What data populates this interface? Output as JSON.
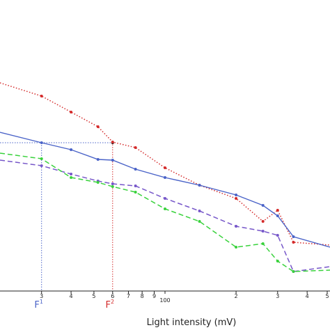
{
  "chart_data": {
    "type": "line",
    "xlabel": "Light intensity (mV)",
    "x_scale": "log",
    "x_ticks": [
      "3",
      "4",
      "5",
      "6",
      "7",
      "8",
      "9",
      "100",
      "2",
      "3",
      "4",
      "5"
    ],
    "markers": [
      {
        "label": "F",
        "sup": "1",
        "color": "#4a63c8"
      },
      {
        "label": "F",
        "sup": "2",
        "color": "#d42a2a"
      }
    ],
    "colors": {
      "blue": "#4a63c8",
      "red": "#d42a2a",
      "purple": "#7656c9",
      "green": "#39d23c"
    },
    "series": [
      {
        "color": "#d42a2a",
        "style": "dotted",
        "points": [
          [
            20,
            119
          ],
          [
            30,
            138
          ],
          [
            40,
            161
          ],
          [
            52,
            182
          ],
          [
            60,
            204
          ],
          [
            75,
            212
          ],
          [
            100,
            241
          ],
          [
            140,
            266
          ],
          [
            200,
            285
          ],
          [
            260,
            318
          ],
          [
            300,
            302
          ],
          [
            350,
            348
          ],
          [
            500,
            352
          ]
        ]
      },
      {
        "color": "#4a63c8",
        "style": "solid",
        "points": [
          [
            20,
            190
          ],
          [
            30,
            205
          ],
          [
            40,
            215
          ],
          [
            52,
            229
          ],
          [
            60,
            230
          ],
          [
            75,
            243
          ],
          [
            100,
            255
          ],
          [
            140,
            266
          ],
          [
            200,
            280
          ],
          [
            260,
            295
          ],
          [
            300,
            310
          ],
          [
            350,
            340
          ],
          [
            500,
            355
          ]
        ]
      },
      {
        "color": "#7656c9",
        "style": "dashed",
        "points": [
          [
            20,
            230
          ],
          [
            30,
            238
          ],
          [
            40,
            250
          ],
          [
            52,
            260
          ],
          [
            60,
            264
          ],
          [
            75,
            267
          ],
          [
            100,
            285
          ],
          [
            140,
            303
          ],
          [
            200,
            325
          ],
          [
            260,
            332
          ],
          [
            300,
            338
          ],
          [
            350,
            390
          ],
          [
            500,
            383
          ]
        ]
      },
      {
        "color": "#39d23c",
        "style": "dashed",
        "points": [
          [
            20,
            220
          ],
          [
            30,
            228
          ],
          [
            40,
            255
          ],
          [
            52,
            262
          ],
          [
            60,
            268
          ],
          [
            75,
            276
          ],
          [
            100,
            300
          ],
          [
            140,
            318
          ],
          [
            200,
            355
          ],
          [
            260,
            350
          ],
          [
            300,
            375
          ],
          [
            350,
            390
          ],
          [
            500,
            388
          ]
        ]
      }
    ]
  }
}
